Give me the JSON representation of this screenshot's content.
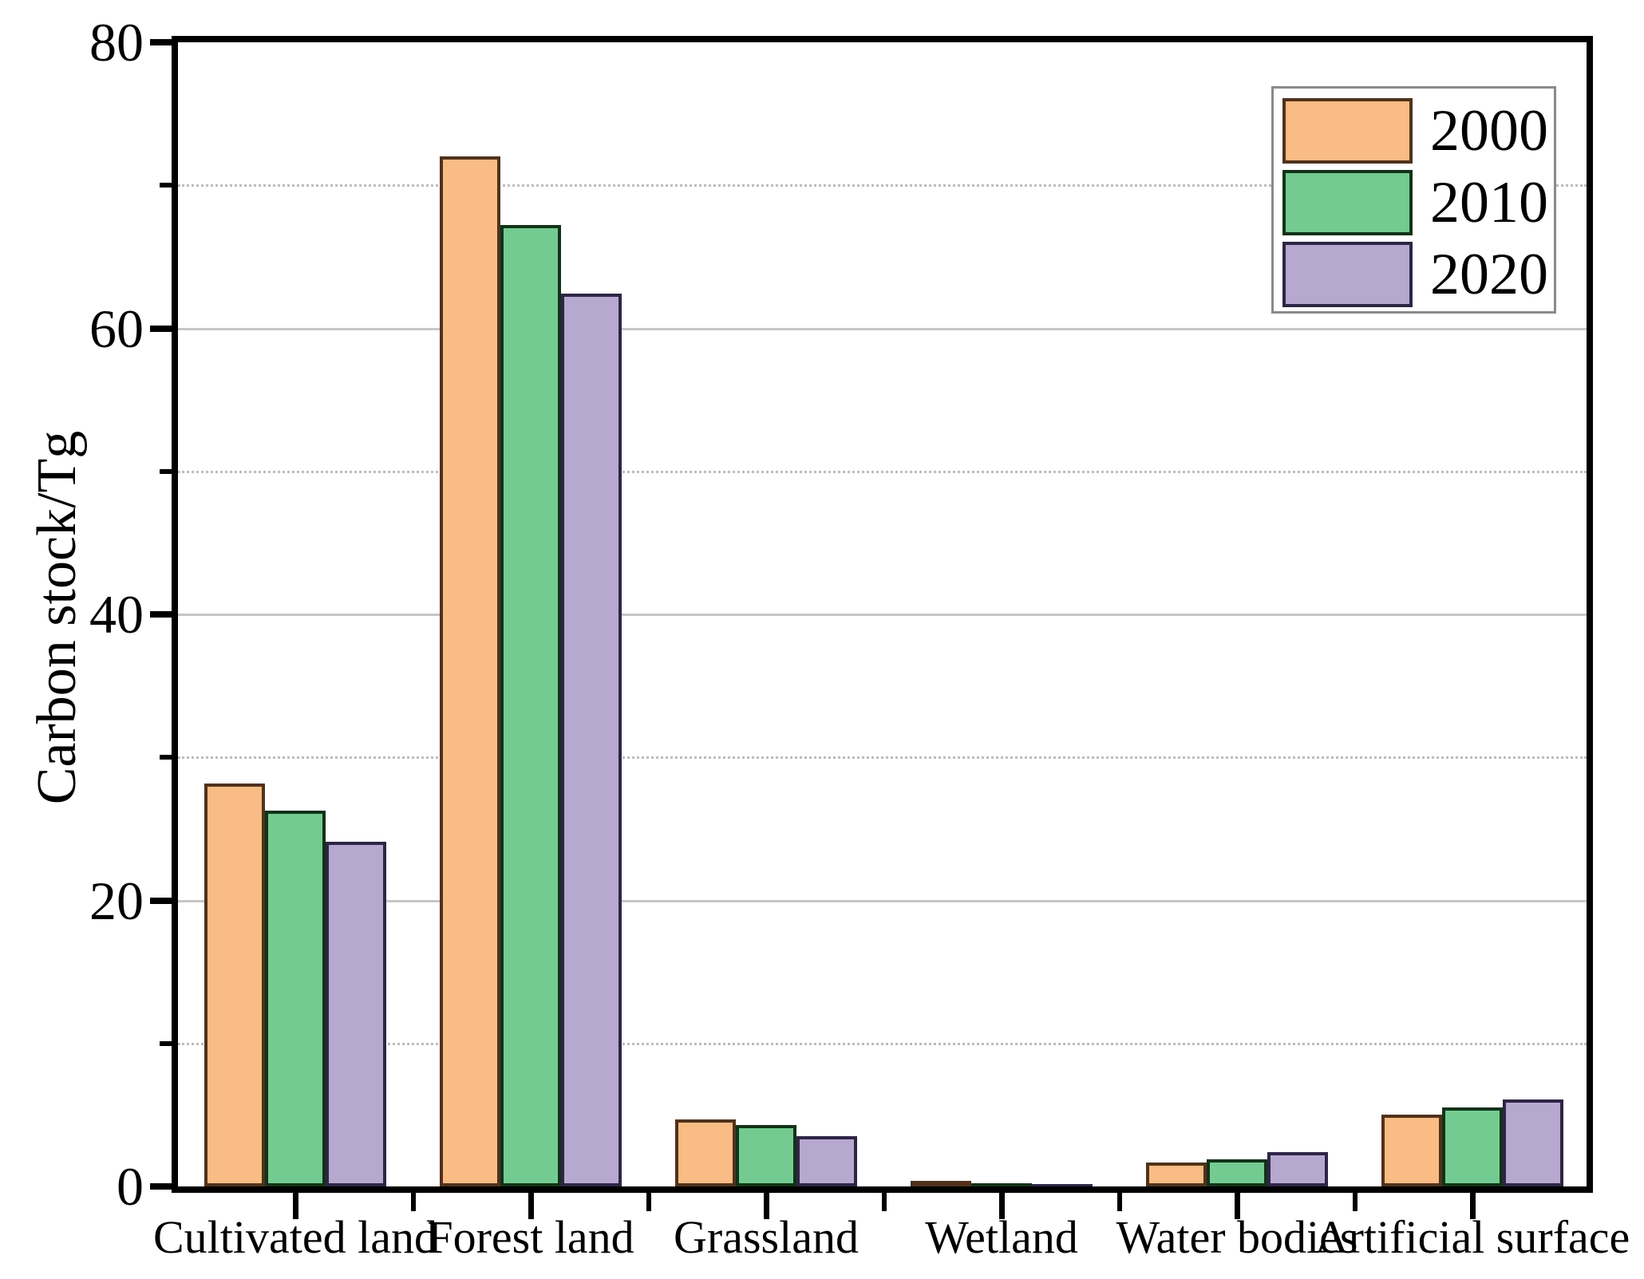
{
  "chart_data": {
    "type": "bar",
    "title": "",
    "ylabel": "Carbon stock/Tg",
    "xlabel": "",
    "categories": [
      "Cultivated land",
      "Forest land",
      "Grassland",
      "Wetland",
      "Water bodies",
      "Artificial surface"
    ],
    "series": [
      {
        "name": "2000",
        "fill": "#F8BC84",
        "edge": "#50321B",
        "values": [
          28.2,
          72.0,
          4.7,
          0.4,
          1.7,
          5.0
        ]
      },
      {
        "name": "2010",
        "fill": "#74CB91",
        "edge": "#123318",
        "values": [
          26.3,
          67.2,
          4.3,
          0.2,
          1.9,
          5.5
        ]
      },
      {
        "name": "2020",
        "fill": "#B7A8D0",
        "edge": "#2E2545",
        "values": [
          24.1,
          62.4,
          3.5,
          0.1,
          2.4,
          6.1
        ]
      }
    ],
    "ylim": [
      0,
      80
    ],
    "yticks_major": [
      0,
      20,
      40,
      60,
      80
    ],
    "yticks_minor": [
      10,
      30,
      50,
      70
    ],
    "grid": "horizontal: solid light gray at major ticks, dotted light gray at minor ticks",
    "legend_position": "top-right",
    "legend_entries": [
      "2000",
      "2010",
      "2020"
    ]
  },
  "colors": {
    "background": "#ffffff",
    "axis": "#000000",
    "grid_major": "#c6c6c6",
    "grid_minor": "#bdbdbd",
    "legend_border": "#8a8a8a",
    "text": "#000000"
  }
}
